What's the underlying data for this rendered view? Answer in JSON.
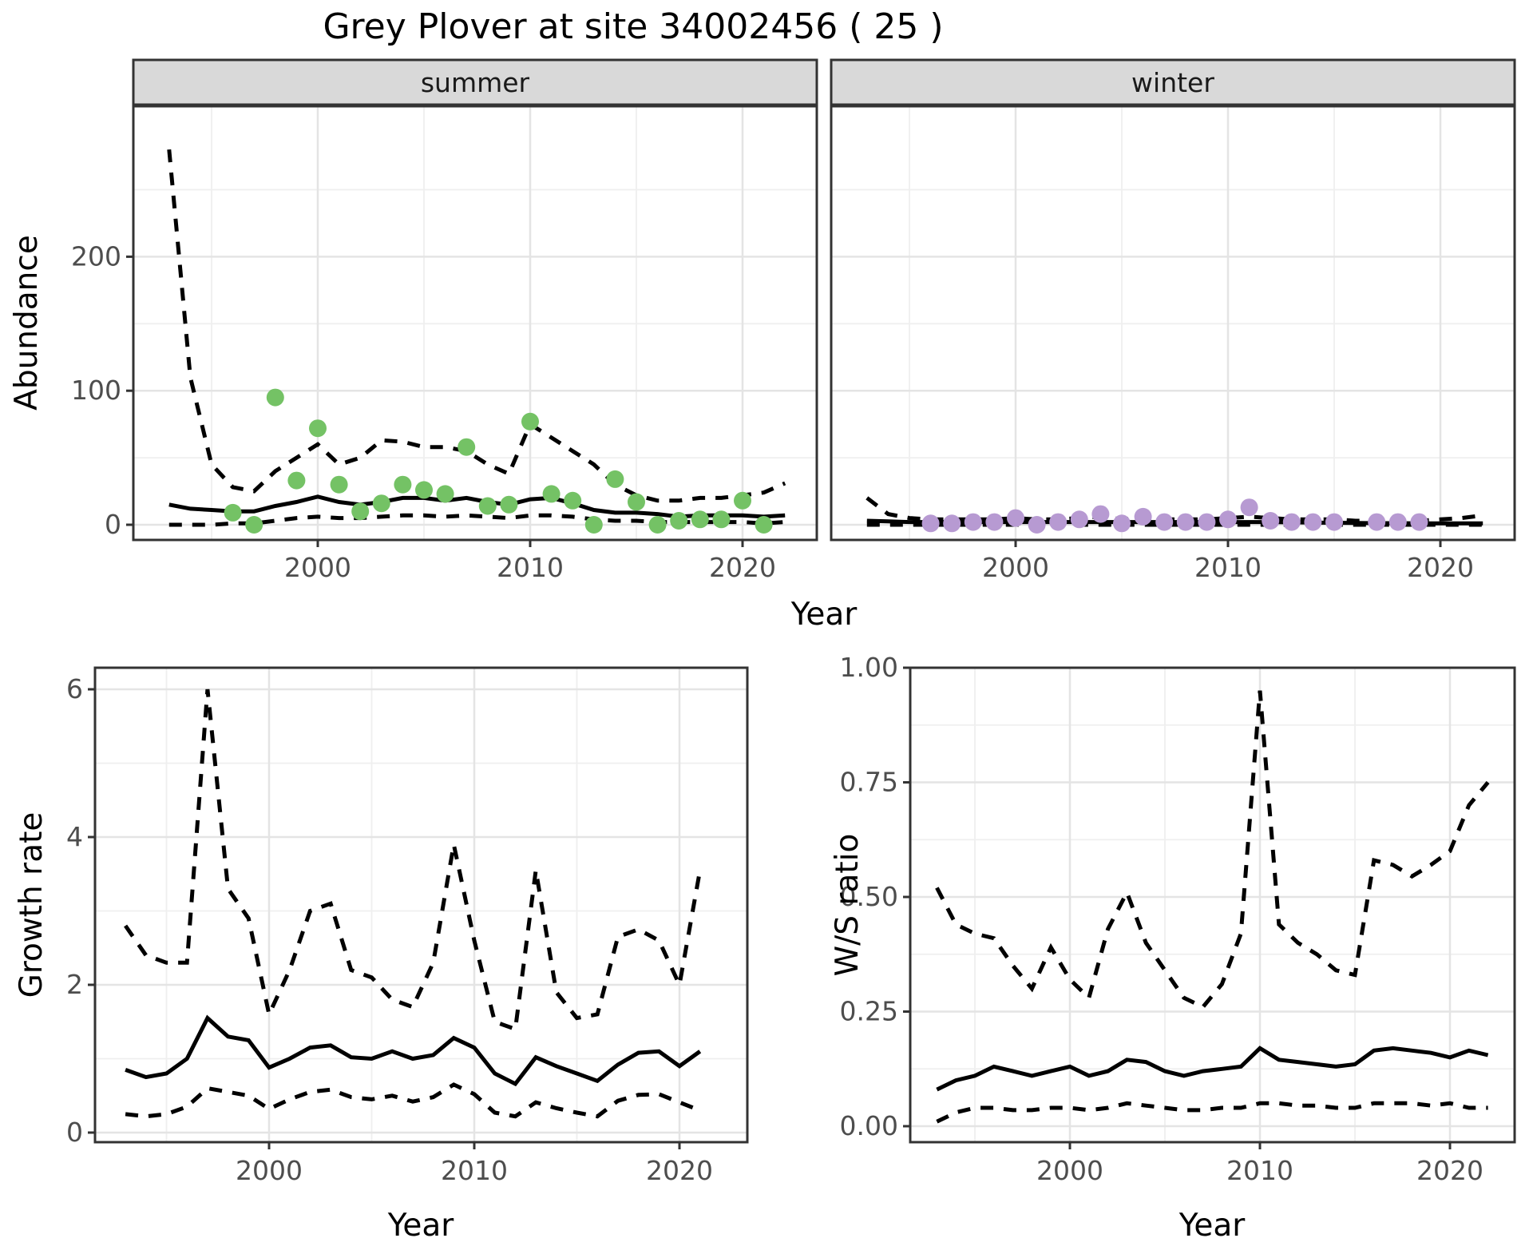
{
  "title": "Grey Plover at site 34002456 ( 25 )",
  "axes": {
    "abundance_label": "Abundance",
    "growth_label": "Growth rate",
    "ws_label": "W/S ratio",
    "year_label": "Year"
  },
  "colors": {
    "summer_point": "#74C265",
    "winter_point": "#B79AD2",
    "line": "#000000",
    "strip_bg": "#D9D9D9",
    "strip_border": "#333333",
    "panel_border": "#333333",
    "grid_major": "#E4E4E4",
    "grid_minor": "#EFEFEF",
    "tick_mark": "#333333",
    "tick_label": "#4D4D4D",
    "background": "#FFFFFF"
  },
  "chart_data": [
    {
      "id": "summer_abundance",
      "type": "line",
      "facet": "summer",
      "xlabel": "Year",
      "ylabel": "Abundance",
      "xlim": [
        1991.3,
        2023.5
      ],
      "ylim": [
        -11,
        312
      ],
      "x_major": [
        2000,
        2010,
        2020
      ],
      "x_major_labels": [
        "2000",
        "2010",
        "2020"
      ],
      "x_minor": [
        1995,
        2005,
        2015
      ],
      "y_major": [
        0,
        100,
        200
      ],
      "y_major_labels": [
        "0",
        "100",
        "200"
      ],
      "y_minor": [
        50,
        150,
        250
      ],
      "years": [
        1993,
        1994,
        1995,
        1996,
        1997,
        1998,
        1999,
        2000,
        2001,
        2002,
        2003,
        2004,
        2005,
        2006,
        2007,
        2008,
        2009,
        2010,
        2011,
        2012,
        2013,
        2014,
        2015,
        2016,
        2017,
        2018,
        2019,
        2020,
        2021,
        2022
      ],
      "series": [
        {
          "name": "modelled_median",
          "style": "solid",
          "values": [
            15,
            12,
            11,
            10,
            10,
            14,
            17,
            21,
            17,
            15,
            17,
            20,
            20,
            18,
            20,
            17,
            15,
            19,
            20,
            16,
            11,
            9,
            9,
            8,
            6,
            7,
            7,
            7,
            6,
            7
          ]
        },
        {
          "name": "ci_upper",
          "style": "dashed",
          "values": [
            280,
            110,
            45,
            28,
            25,
            40,
            50,
            60,
            45,
            50,
            63,
            62,
            58,
            58,
            55,
            45,
            38,
            75,
            65,
            55,
            45,
            30,
            22,
            18,
            18,
            20,
            20,
            22,
            24,
            31
          ]
        },
        {
          "name": "ci_lower",
          "style": "dashed",
          "values": [
            0,
            0,
            0,
            1,
            1,
            3,
            5,
            6,
            5,
            5,
            6,
            7,
            7,
            6,
            7,
            6,
            5,
            7,
            7,
            6,
            4,
            3,
            3,
            2,
            2,
            2,
            2,
            2,
            1,
            2
          ]
        }
      ],
      "points": {
        "name": "observed_counts",
        "color_key": "summer_point",
        "years": [
          1996,
          1997,
          1998,
          1999,
          2000,
          2001,
          2002,
          2003,
          2004,
          2005,
          2006,
          2007,
          2008,
          2009,
          2010,
          2011,
          2012,
          2013,
          2014,
          2015,
          2016,
          2017,
          2018,
          2019,
          2020,
          2021
        ],
        "values": [
          9,
          0,
          95,
          33,
          72,
          30,
          10,
          16,
          30,
          26,
          23,
          58,
          14,
          15,
          77,
          23,
          18,
          0,
          34,
          17,
          0,
          3,
          4,
          4,
          18,
          0
        ]
      }
    },
    {
      "id": "winter_abundance",
      "type": "line",
      "facet": "winter",
      "xlabel": "Year",
      "ylabel": "Abundance",
      "xlim": [
        1991.3,
        2023.5
      ],
      "ylim": [
        -11,
        312
      ],
      "x_major": [
        2000,
        2010,
        2020
      ],
      "x_major_labels": [
        "2000",
        "2010",
        "2020"
      ],
      "x_minor": [
        1995,
        2005,
        2015
      ],
      "y_major": [
        0,
        100,
        200
      ],
      "y_major_labels": [
        "0",
        "100",
        "200"
      ],
      "y_minor": [
        50,
        150,
        250
      ],
      "years": [
        1993,
        1994,
        1995,
        1996,
        1997,
        1998,
        1999,
        2000,
        2001,
        2002,
        2003,
        2004,
        2005,
        2006,
        2007,
        2008,
        2009,
        2010,
        2011,
        2012,
        2013,
        2014,
        2015,
        2016,
        2017,
        2018,
        2019,
        2020,
        2021,
        2022
      ],
      "series": [
        {
          "name": "modelled_median",
          "style": "solid",
          "values": [
            3,
            2.5,
            2,
            2,
            2,
            2,
            2,
            2,
            2,
            2,
            2,
            2,
            2,
            2,
            2,
            2,
            2,
            2,
            2,
            2,
            1.8,
            1.6,
            1.5,
            1.4,
            1.2,
            1.2,
            1.1,
            1,
            1,
            1
          ]
        },
        {
          "name": "ci_upper",
          "style": "dashed",
          "values": [
            20,
            8,
            5,
            4,
            4,
            4,
            4,
            5,
            4,
            4,
            5,
            6,
            4,
            5,
            4,
            4,
            4,
            5,
            6,
            5,
            4,
            4,
            4,
            3,
            3,
            3,
            3,
            4,
            5,
            7
          ]
        },
        {
          "name": "ci_lower",
          "style": "dashed",
          "values": [
            0,
            0,
            0,
            0,
            0,
            0,
            0,
            0,
            0,
            0,
            0,
            0,
            0,
            0,
            0,
            0,
            0,
            0,
            0,
            0,
            0,
            0,
            0,
            0,
            0,
            0,
            0,
            0,
            0,
            0
          ]
        }
      ],
      "points": {
        "name": "observed_counts",
        "color_key": "winter_point",
        "years": [
          1996,
          1997,
          1998,
          1999,
          2000,
          2001,
          2002,
          2003,
          2004,
          2005,
          2006,
          2007,
          2008,
          2009,
          2010,
          2011,
          2012,
          2013,
          2014,
          2015,
          2017,
          2018,
          2019
        ],
        "values": [
          1,
          1,
          2,
          2,
          5,
          0,
          2,
          4,
          8,
          1,
          6,
          2,
          2,
          2,
          4,
          13,
          3,
          2,
          2,
          2,
          2,
          2,
          2
        ]
      }
    },
    {
      "id": "growth_rate",
      "type": "line",
      "facet": null,
      "xlabel": "Year",
      "ylabel": "Growth rate",
      "xlim": [
        1991.5,
        2023.3
      ],
      "ylim": [
        -0.13,
        6.3
      ],
      "x_major": [
        2000,
        2010,
        2020
      ],
      "x_major_labels": [
        "2000",
        "2010",
        "2020"
      ],
      "x_minor": [
        1995,
        2005,
        2015
      ],
      "y_major": [
        0,
        2,
        4,
        6
      ],
      "y_major_labels": [
        "0",
        "2",
        "4",
        "6"
      ],
      "y_minor": [
        1,
        3,
        5
      ],
      "years": [
        1993,
        1994,
        1995,
        1996,
        1997,
        1998,
        1999,
        2000,
        2001,
        2002,
        2003,
        2004,
        2005,
        2006,
        2007,
        2008,
        2009,
        2010,
        2011,
        2012,
        2013,
        2014,
        2015,
        2016,
        2017,
        2018,
        2019,
        2020,
        2021
      ],
      "series": [
        {
          "name": "modelled_median",
          "style": "solid",
          "values": [
            0.85,
            0.75,
            0.8,
            1.0,
            1.55,
            1.3,
            1.25,
            0.88,
            1.0,
            1.15,
            1.18,
            1.02,
            1.0,
            1.1,
            1.0,
            1.05,
            1.28,
            1.15,
            0.8,
            0.66,
            1.02,
            0.9,
            0.8,
            0.7,
            0.92,
            1.08,
            1.1,
            0.9,
            1.1
          ]
        },
        {
          "name": "ci_upper",
          "style": "dashed",
          "values": [
            2.8,
            2.4,
            2.3,
            2.3,
            6.0,
            3.3,
            2.9,
            1.6,
            2.2,
            3.0,
            3.1,
            2.2,
            2.1,
            1.8,
            1.7,
            2.3,
            3.9,
            2.6,
            1.5,
            1.4,
            3.55,
            1.9,
            1.55,
            1.6,
            2.65,
            2.75,
            2.6,
            2.0,
            3.55
          ]
        },
        {
          "name": "ci_lower",
          "style": "dashed",
          "values": [
            0.25,
            0.22,
            0.25,
            0.35,
            0.6,
            0.55,
            0.5,
            0.32,
            0.45,
            0.55,
            0.58,
            0.48,
            0.45,
            0.5,
            0.42,
            0.48,
            0.65,
            0.52,
            0.27,
            0.22,
            0.41,
            0.33,
            0.27,
            0.22,
            0.43,
            0.51,
            0.52,
            0.41,
            0.3
          ]
        }
      ],
      "points": null
    },
    {
      "id": "ws_ratio",
      "type": "line",
      "facet": null,
      "xlabel": "Year",
      "ylabel": "W/S ratio",
      "xlim": [
        1991.6,
        2023.4
      ],
      "ylim": [
        -0.035,
        1.0
      ],
      "x_major": [
        2000,
        2010,
        2020
      ],
      "x_major_labels": [
        "2000",
        "2010",
        "2020"
      ],
      "x_minor": [
        1995,
        2005,
        2015
      ],
      "y_major": [
        0,
        0.25,
        0.5,
        0.75,
        1.0
      ],
      "y_major_labels": [
        "0.00",
        "0.25",
        "0.50",
        "0.75",
        "1.00"
      ],
      "y_minor": [
        0.125,
        0.375,
        0.625,
        0.875
      ],
      "years": [
        1993,
        1994,
        1995,
        1996,
        1997,
        1998,
        1999,
        2000,
        2001,
        2002,
        2003,
        2004,
        2005,
        2006,
        2007,
        2008,
        2009,
        2010,
        2011,
        2012,
        2013,
        2014,
        2015,
        2016,
        2017,
        2018,
        2019,
        2020,
        2021,
        2022
      ],
      "series": [
        {
          "name": "modelled_median",
          "style": "solid",
          "values": [
            0.08,
            0.1,
            0.11,
            0.13,
            0.12,
            0.11,
            0.12,
            0.13,
            0.11,
            0.12,
            0.145,
            0.14,
            0.12,
            0.11,
            0.12,
            0.125,
            0.13,
            0.17,
            0.145,
            0.14,
            0.135,
            0.13,
            0.135,
            0.165,
            0.17,
            0.165,
            0.16,
            0.15,
            0.165,
            0.155
          ]
        },
        {
          "name": "ci_upper",
          "style": "dashed",
          "values": [
            0.52,
            0.44,
            0.42,
            0.41,
            0.35,
            0.3,
            0.39,
            0.32,
            0.28,
            0.43,
            0.51,
            0.4,
            0.34,
            0.28,
            0.26,
            0.31,
            0.42,
            0.95,
            0.44,
            0.4,
            0.375,
            0.34,
            0.33,
            0.58,
            0.57,
            0.545,
            0.57,
            0.6,
            0.7,
            0.75
          ]
        },
        {
          "name": "ci_lower",
          "style": "dashed",
          "values": [
            0.01,
            0.03,
            0.04,
            0.04,
            0.035,
            0.035,
            0.04,
            0.04,
            0.035,
            0.04,
            0.05,
            0.045,
            0.04,
            0.035,
            0.035,
            0.04,
            0.04,
            0.05,
            0.05,
            0.045,
            0.045,
            0.04,
            0.04,
            0.05,
            0.05,
            0.05,
            0.045,
            0.05,
            0.04,
            0.04
          ]
        }
      ],
      "points": null
    }
  ]
}
